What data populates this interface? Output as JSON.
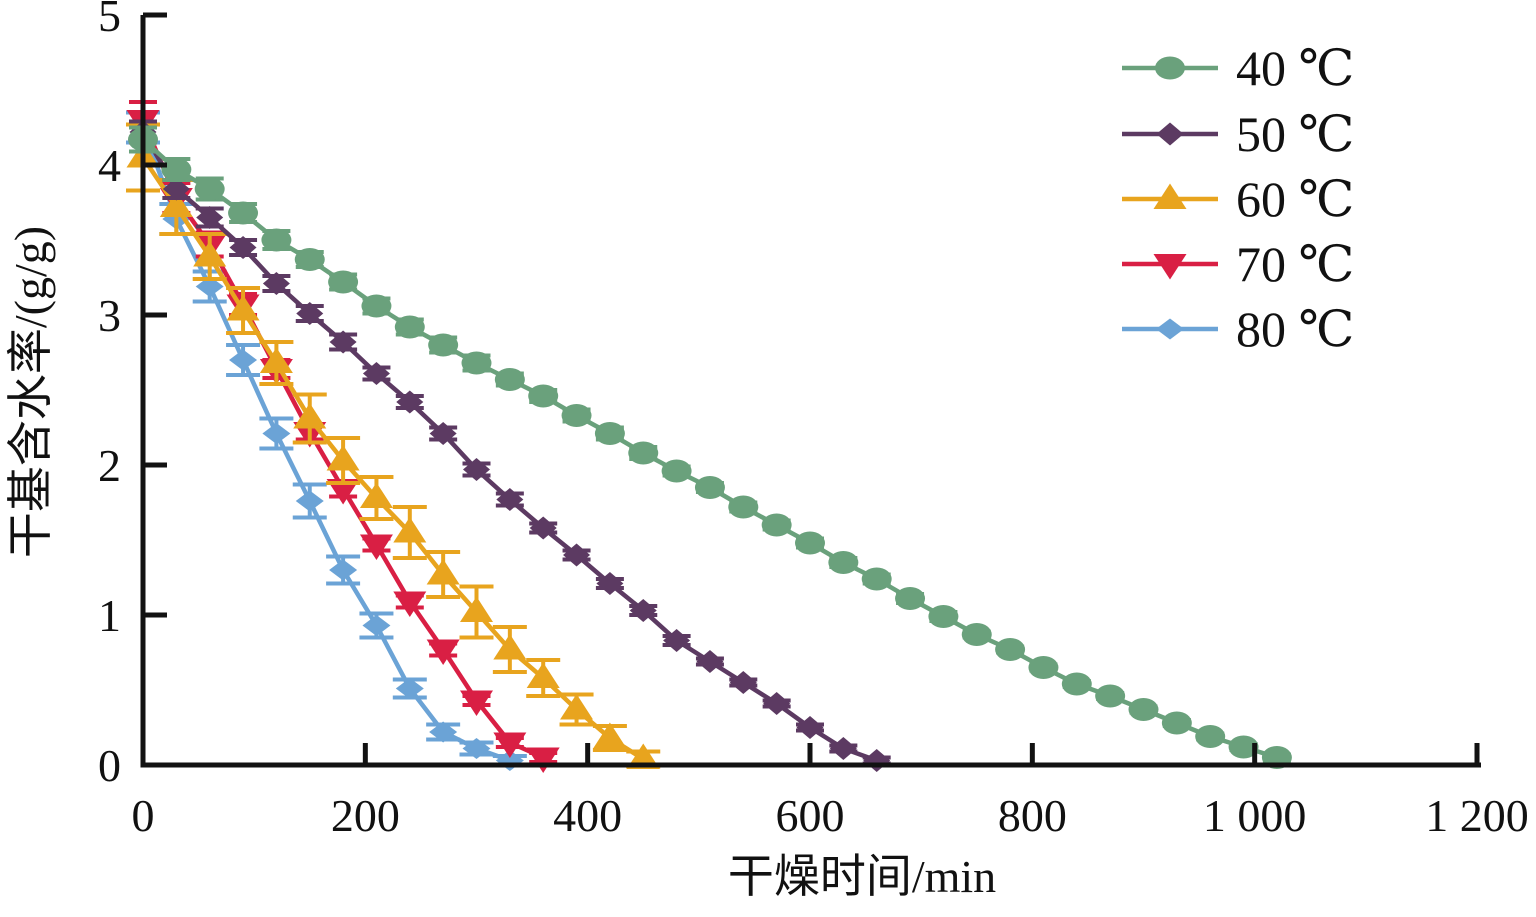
{
  "figure": {
    "background": "#ffffff",
    "axis_color": "#121212"
  },
  "chart_data": {
    "type": "line",
    "title": "",
    "xlabel": "干燥时间/min",
    "ylabel": "干基含水率/(g/g)",
    "xlim": [
      0,
      1200
    ],
    "ylim": [
      0,
      5
    ],
    "grid": false,
    "legend_position": "upper-right-inside",
    "xticks": {
      "values": [
        0,
        200,
        400,
        600,
        800,
        1000,
        1200
      ],
      "labels": [
        "0",
        "200",
        "400",
        "600",
        "800",
        "1 000",
        "1 200"
      ]
    },
    "yticks": {
      "values": [
        0,
        1,
        2,
        3,
        4,
        5
      ],
      "labels": [
        "0",
        "1",
        "2",
        "3",
        "4",
        "5"
      ]
    },
    "series": [
      {
        "name": "40 ℃",
        "color": "#6aa17c",
        "marker": "circle",
        "x": [
          0,
          30,
          60,
          90,
          120,
          150,
          180,
          210,
          240,
          270,
          300,
          330,
          360,
          390,
          420,
          450,
          480,
          510,
          540,
          570,
          600,
          630,
          660,
          690,
          720,
          750,
          780,
          810,
          840,
          870,
          900,
          930,
          960,
          990,
          1020
        ],
        "values": [
          4.17,
          3.97,
          3.84,
          3.68,
          3.5,
          3.37,
          3.22,
          3.06,
          2.92,
          2.8,
          2.68,
          2.57,
          2.46,
          2.33,
          2.21,
          2.08,
          1.96,
          1.85,
          1.72,
          1.6,
          1.48,
          1.35,
          1.24,
          1.11,
          0.99,
          0.87,
          0.77,
          0.65,
          0.54,
          0.46,
          0.37,
          0.28,
          0.19,
          0.12,
          0.05
        ],
        "errors": [
          0.08,
          0.07,
          0.07,
          0.06,
          0.06,
          0.05,
          0.05,
          0.05,
          0.05,
          0.05,
          0.05,
          0.04,
          0.04,
          0.04,
          0.04,
          0.04,
          0.03,
          0.03,
          0.03,
          0.03,
          0.03,
          0.03,
          0.03,
          0.03,
          0.03,
          0.02,
          0.02,
          0.02,
          0.02,
          0.02,
          0.02,
          0.02,
          0.02,
          0.02,
          0.02
        ]
      },
      {
        "name": "50 ℃",
        "color": "#5c3a62",
        "marker": "diamond",
        "x": [
          0,
          30,
          60,
          90,
          120,
          150,
          180,
          210,
          240,
          270,
          300,
          330,
          360,
          390,
          420,
          450,
          480,
          510,
          540,
          570,
          600,
          630,
          660
        ],
        "values": [
          4.22,
          3.84,
          3.65,
          3.45,
          3.21,
          3.01,
          2.82,
          2.61,
          2.42,
          2.21,
          1.97,
          1.77,
          1.58,
          1.4,
          1.21,
          1.03,
          0.83,
          0.69,
          0.55,
          0.41,
          0.25,
          0.11,
          0.03
        ],
        "errors": [
          0.07,
          0.06,
          0.06,
          0.05,
          0.05,
          0.05,
          0.05,
          0.04,
          0.04,
          0.04,
          0.04,
          0.04,
          0.03,
          0.03,
          0.03,
          0.03,
          0.03,
          0.02,
          0.02,
          0.02,
          0.02,
          0.02,
          0.02
        ]
      },
      {
        "name": "60 ℃",
        "color": "#e8a41e",
        "marker": "triangle-up",
        "x": [
          0,
          30,
          60,
          90,
          120,
          150,
          180,
          210,
          240,
          270,
          300,
          330,
          360,
          390,
          420,
          450
        ],
        "values": [
          4.05,
          3.72,
          3.39,
          3.03,
          2.68,
          2.31,
          2.03,
          1.78,
          1.55,
          1.27,
          1.02,
          0.77,
          0.58,
          0.37,
          0.18,
          0.04
        ],
        "errors": [
          0.22,
          0.18,
          0.15,
          0.15,
          0.14,
          0.16,
          0.15,
          0.14,
          0.17,
          0.15,
          0.17,
          0.15,
          0.12,
          0.1,
          0.08,
          0.05
        ]
      },
      {
        "name": "70 ℃",
        "color": "#d91f44",
        "marker": "triangle-down",
        "x": [
          0,
          30,
          60,
          90,
          120,
          150,
          180,
          210,
          240,
          270,
          300,
          330,
          360
        ],
        "values": [
          4.3,
          3.78,
          3.47,
          3.07,
          2.64,
          2.22,
          1.84,
          1.47,
          1.09,
          0.77,
          0.43,
          0.15,
          0.05
        ],
        "errors": [
          0.12,
          0.1,
          0.08,
          0.07,
          0.06,
          0.05,
          0.05,
          0.04,
          0.04,
          0.04,
          0.03,
          0.03,
          0.03
        ]
      },
      {
        "name": "80 ℃",
        "color": "#6ba3d6",
        "marker": "diamond-small",
        "x": [
          0,
          30,
          60,
          90,
          120,
          150,
          180,
          210,
          240,
          270,
          300,
          330
        ],
        "values": [
          4.25,
          3.64,
          3.19,
          2.7,
          2.21,
          1.76,
          1.3,
          0.93,
          0.51,
          0.22,
          0.11,
          0.03
        ],
        "errors": [
          0.1,
          0.1,
          0.1,
          0.1,
          0.1,
          0.11,
          0.09,
          0.08,
          0.06,
          0.05,
          0.04,
          0.03
        ]
      }
    ]
  }
}
